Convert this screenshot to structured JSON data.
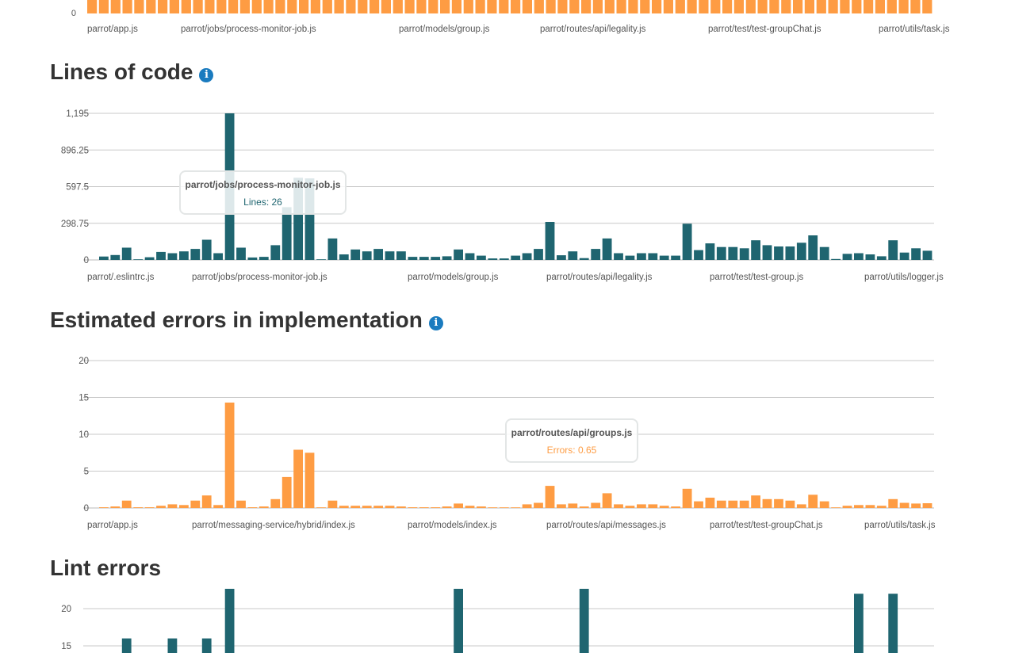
{
  "colors": {
    "teal": "#1f6570",
    "orange": "#fe9c43",
    "grid": "#c8c8c8",
    "axis_text": "#555555",
    "info": "#1a7bbf"
  },
  "top_chart": {
    "zero_label": "0",
    "category_labels": [
      "parrot/app.js",
      "parrot/jobs/process-monitor-job.js",
      "parrot/models/group.js",
      "parrot/routes/api/legality.js",
      "parrot/test/test-groupChat.js",
      "parrot/utils/task.js"
    ]
  },
  "sections": {
    "loc": {
      "title": "Lines of code",
      "info_icon": "info-icon"
    },
    "errors": {
      "title": "Estimated errors in implementation",
      "info_icon": "info-icon"
    },
    "lint": {
      "title": "Lint errors"
    }
  },
  "tooltips": {
    "loc": {
      "title": "parrot/jobs/process-monitor-job.js",
      "value": "Lines: 26"
    },
    "errors": {
      "title": "parrot/routes/api/groups.js",
      "value": "Errors: 0.65"
    }
  },
  "chart_data": [
    {
      "id": "loc",
      "type": "bar",
      "title": "Lines of code",
      "color": "#1f6570",
      "ylim": [
        0,
        1195
      ],
      "yticks": [
        0,
        298.75,
        597.5,
        896.25,
        1195
      ],
      "ytick_labels": [
        "0",
        "298.75",
        "597.5",
        "896.25",
        "1,195"
      ],
      "category_labels": [
        "parrot/.eslintrc.js",
        "parrot/jobs/process-monitor-job.js",
        "parrot/models/group.js",
        "parrot/routes/api/legality.js",
        "parrot/test/test-group.js",
        "parrot/utils/logger.js"
      ],
      "values": [
        28,
        40,
        100,
        4,
        22,
        65,
        55,
        70,
        90,
        165,
        55,
        1195,
        100,
        20,
        25,
        120,
        430,
        670,
        665,
        4,
        175,
        45,
        85,
        70,
        90,
        70,
        70,
        25,
        25,
        25,
        30,
        85,
        55,
        35,
        12,
        12,
        35,
        55,
        90,
        310,
        38,
        70,
        15,
        90,
        175,
        55,
        35,
        55,
        55,
        35,
        35,
        295,
        80,
        135,
        105,
        105,
        95,
        160,
        120,
        110,
        110,
        140,
        200,
        105,
        8,
        50,
        55,
        45,
        30,
        160,
        60,
        95,
        75
      ],
      "highlight_index": 26
    },
    {
      "id": "errors",
      "type": "bar",
      "title": "Estimated errors in implementation",
      "color": "#fe9c43",
      "ylim": [
        0,
        20
      ],
      "yticks": [
        0,
        5,
        10,
        15,
        20
      ],
      "ytick_labels": [
        "0",
        "5",
        "10",
        "15",
        "20"
      ],
      "category_labels": [
        "parrot/app.js",
        "parrot/messaging-service/hybrid/index.js",
        "parrot/models/index.js",
        "parrot/routes/api/messages.js",
        "parrot/test/test-groupChat.js",
        "parrot/utils/task.js"
      ],
      "values": [
        0.1,
        0.2,
        1.0,
        0.1,
        0.1,
        0.3,
        0.5,
        0.4,
        1.0,
        1.7,
        0.4,
        14.3,
        1.0,
        0.1,
        0.2,
        1.2,
        4.2,
        7.9,
        7.5,
        0.0,
        1.0,
        0.3,
        0.3,
        0.3,
        0.3,
        0.3,
        0.2,
        0.1,
        0.1,
        0.1,
        0.2,
        0.6,
        0.3,
        0.2,
        0.0,
        0.0,
        0.0,
        0.5,
        0.7,
        3.0,
        0.5,
        0.6,
        0.2,
        0.7,
        2.0,
        0.5,
        0.3,
        0.5,
        0.5,
        0.3,
        0.2,
        2.6,
        0.9,
        1.4,
        1.0,
        1.0,
        1.0,
        1.7,
        1.2,
        1.2,
        1.0,
        0.5,
        1.8,
        0.9,
        0.0,
        0.3,
        0.4,
        0.4,
        0.3,
        1.2,
        0.7,
        0.6,
        0.65
      ],
      "highlight_index": 47
    },
    {
      "id": "lint",
      "type": "bar",
      "title": "Lint errors",
      "color": "#1f6570",
      "yticks": [
        15,
        20
      ],
      "ytick_labels": [
        "15",
        "20"
      ],
      "values": [
        {
          "index": 2,
          "value": 16
        },
        {
          "index": 6,
          "value": 16
        },
        {
          "index": 9,
          "value": 16
        },
        {
          "index": 11,
          "value": 23
        },
        {
          "index": 31,
          "value": 23
        },
        {
          "index": 42,
          "value": 23
        },
        {
          "index": 66,
          "value": 22
        },
        {
          "index": 69,
          "value": 22
        }
      ]
    }
  ]
}
